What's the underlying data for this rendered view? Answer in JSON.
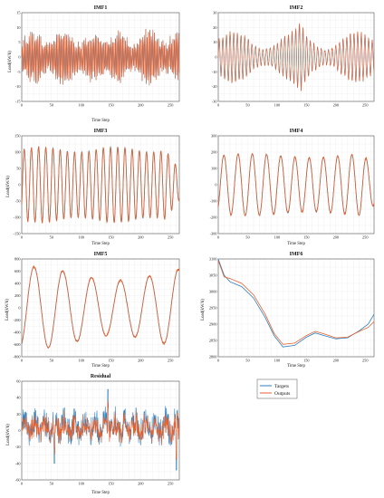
{
  "figure": {
    "legend": {
      "targets_label": "Targets",
      "outputs_label": "Outputs",
      "placement": "below IMF6"
    },
    "colors": {
      "targets": "#2a7fc0",
      "outputs": "#e8602c",
      "grid": "#e6e6e6",
      "axis": "#333333"
    }
  },
  "chart_data": [
    {
      "id": "imf1",
      "type": "line",
      "title": "IMF1",
      "xlabel": "Time Step",
      "ylabel": "Load(kW/h)",
      "xlim": [
        0,
        265
      ],
      "ylim": [
        -15,
        15
      ],
      "xticks": [
        0,
        50,
        100,
        150,
        200,
        250
      ],
      "yticks": [
        -15,
        -10,
        -5,
        0,
        5,
        10,
        15
      ],
      "grid": true,
      "signal": "high-frequency oscillation, amplitude up to ~11",
      "series": [
        {
          "name": "Targets"
        },
        {
          "name": "Outputs"
        }
      ]
    },
    {
      "id": "imf2",
      "type": "line",
      "title": "IMF2",
      "xlabel": "",
      "ylabel": "",
      "xlim": [
        0,
        265
      ],
      "ylim": [
        -30,
        30
      ],
      "xticks": [
        0,
        50,
        100,
        150,
        200,
        250
      ],
      "yticks": [
        -30,
        -20,
        -10,
        0,
        10,
        20,
        30
      ],
      "grid": true,
      "signal": "oscillation period ~6 steps, amplitude ~10-25, peak ~26 at x~140",
      "series": [
        {
          "name": "Targets"
        },
        {
          "name": "Outputs"
        }
      ]
    },
    {
      "id": "imf3",
      "type": "line",
      "title": "IMF3",
      "xlabel": "Time Step",
      "ylabel": "Load(kW/h)",
      "xlim": [
        0,
        265
      ],
      "ylim": [
        -150,
        150
      ],
      "xticks": [
        0,
        50,
        100,
        150,
        200,
        250
      ],
      "yticks": [
        -150,
        -100,
        -50,
        0,
        50,
        100,
        150
      ],
      "grid": true,
      "signal": "sinusoid period ~12 steps, amplitude ~110",
      "series": [
        {
          "name": "Targets"
        },
        {
          "name": "Outputs"
        }
      ]
    },
    {
      "id": "imf4",
      "type": "line",
      "title": "IMF4",
      "xlabel": "Time Step",
      "ylabel": "",
      "xlim": [
        0,
        265
      ],
      "ylim": [
        -300,
        300
      ],
      "xticks": [
        0,
        50,
        100,
        150,
        200,
        250
      ],
      "yticks": [
        -300,
        -200,
        -100,
        0,
        100,
        200,
        300
      ],
      "grid": true,
      "signal": "sinusoid period ~24 steps, amplitude ~190",
      "series": [
        {
          "name": "Targets"
        },
        {
          "name": "Outputs"
        }
      ]
    },
    {
      "id": "imf5",
      "type": "line",
      "title": "IMF5",
      "xlabel": "Time Step",
      "ylabel": "Load(kW/h)",
      "xlim": [
        0,
        265
      ],
      "ylim": [
        -800,
        800
      ],
      "xticks": [
        0,
        50,
        100,
        150,
        200,
        250
      ],
      "yticks": [
        -800,
        -600,
        -400,
        -200,
        0,
        200,
        400,
        600,
        800
      ],
      "grid": true,
      "signal": "sinusoid period ~48 steps, peaks ~600-700",
      "series": [
        {
          "name": "Targets"
        },
        {
          "name": "Outputs"
        }
      ]
    },
    {
      "id": "imf6",
      "type": "line",
      "title": "IMF6",
      "xlabel": "Time Step",
      "ylabel": "Load(kW/h)",
      "xlim": [
        0,
        265
      ],
      "ylim": [
        2800,
        3100
      ],
      "xticks": [
        0,
        50,
        100,
        150,
        200,
        250
      ],
      "yticks": [
        2800,
        2850,
        2900,
        2950,
        3000,
        3050,
        3100
      ],
      "grid": true,
      "series": [
        {
          "name": "Targets",
          "x": [
            0,
            10,
            20,
            40,
            60,
            80,
            95,
            110,
            130,
            150,
            165,
            180,
            200,
            220,
            240,
            255,
            265
          ],
          "values": [
            3100,
            3050,
            3030,
            3015,
            2980,
            2920,
            2865,
            2830,
            2835,
            2860,
            2873,
            2865,
            2855,
            2858,
            2880,
            2900,
            2930
          ]
        },
        {
          "name": "Outputs",
          "x": [
            0,
            10,
            20,
            40,
            60,
            80,
            95,
            110,
            130,
            150,
            165,
            180,
            200,
            220,
            240,
            255,
            265
          ],
          "values": [
            3095,
            3045,
            3040,
            3025,
            2990,
            2930,
            2872,
            2838,
            2842,
            2865,
            2878,
            2870,
            2858,
            2860,
            2878,
            2890,
            2908
          ]
        }
      ]
    },
    {
      "id": "residual",
      "type": "line",
      "title": "Residual",
      "xlabel": "Time Step",
      "ylabel": "Load(kW/h)",
      "xlim": [
        0,
        265
      ],
      "ylim": [
        -60,
        60
      ],
      "xticks": [
        0,
        50,
        100,
        150,
        200,
        250
      ],
      "yticks": [
        -60,
        -40,
        -20,
        0,
        20,
        40,
        60
      ],
      "grid": true,
      "signal": "noisy fluctuation around ~5, spikes to ~50 and ~-45",
      "series": [
        {
          "name": "Targets"
        },
        {
          "name": "Outputs"
        }
      ]
    }
  ]
}
